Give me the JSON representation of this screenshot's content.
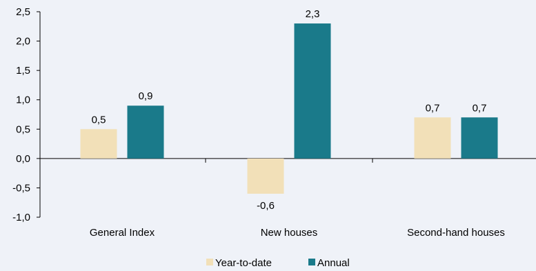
{
  "chart_data": {
    "type": "bar",
    "categories": [
      "General Index",
      "New houses",
      "Second-hand houses"
    ],
    "series": [
      {
        "name": "Year-to-date",
        "values": [
          0.5,
          -0.6,
          0.7
        ],
        "labels": [
          "0,5",
          "-0,6",
          "0,7"
        ],
        "color": "#f2e0b8"
      },
      {
        "name": "Annual",
        "values": [
          0.9,
          2.3,
          0.7
        ],
        "labels": [
          "0,9",
          "2,3",
          "0,7"
        ],
        "color": "#1a7a8a"
      }
    ],
    "ylim": [
      -1.0,
      2.5
    ],
    "yticks": [
      2.5,
      2.0,
      1.5,
      1.0,
      0.5,
      0.0,
      -0.5,
      -1.0
    ],
    "ytick_labels": [
      "2,5",
      "2,0",
      "1,5",
      "1,0",
      "0,5",
      "0,0",
      "-0,5",
      "-1,0"
    ],
    "grid": false,
    "legend": "bottom-center",
    "title": "",
    "xlabel": "",
    "ylabel": ""
  }
}
